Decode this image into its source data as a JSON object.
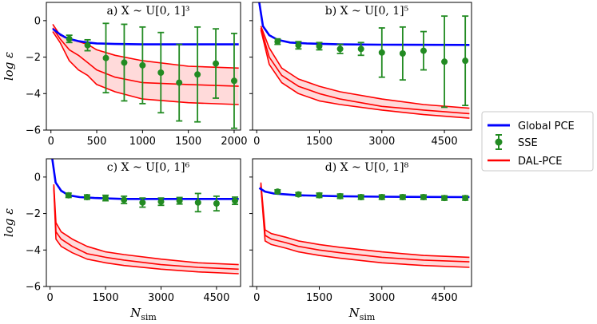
{
  "chart_data": [
    {
      "type": "line",
      "title": "a) X ~ U[0, 1]³",
      "xlabel": "",
      "ylabel": "log ε",
      "xlim": [
        -50,
        2070
      ],
      "ylim": [
        -6,
        1
      ],
      "xticks": [
        "0",
        "500",
        "1000",
        "1500",
        "2000"
      ],
      "yticks": [
        "0",
        "−2",
        "−4",
        "−6"
      ],
      "series": [
        {
          "name": "Global PCE",
          "x": [
            20,
            60,
            100,
            150,
            200,
            300,
            400,
            500,
            700,
            1000,
            1500,
            2050
          ],
          "y": [
            -0.45,
            -0.6,
            -0.75,
            -0.9,
            -1.0,
            -1.12,
            -1.2,
            -1.25,
            -1.28,
            -1.3,
            -1.3,
            -1.3
          ]
        },
        {
          "name": "SSE",
          "x": [
            200,
            400,
            600,
            800,
            1000,
            1200,
            1400,
            1600,
            1800,
            2000
          ],
          "y": [
            -1.0,
            -1.35,
            -2.05,
            -2.3,
            -2.45,
            -2.85,
            -3.4,
            -2.95,
            -2.35,
            -3.3
          ],
          "err": [
            0.2,
            0.3,
            1.9,
            2.1,
            2.1,
            2.2,
            2.1,
            2.6,
            1.9,
            2.6
          ]
        },
        {
          "name": "DAL-PCE",
          "x": [
            20,
            100,
            200,
            300,
            400,
            500,
            700,
            1000,
            1500,
            2050
          ],
          "y_upper": [
            -0.2,
            -0.8,
            -1.0,
            -1.15,
            -1.3,
            -1.6,
            -1.9,
            -2.2,
            -2.5,
            -2.6
          ],
          "y_mid": [
            -0.4,
            -1.0,
            -1.6,
            -1.9,
            -2.3,
            -2.7,
            -3.1,
            -3.4,
            -3.5,
            -3.6
          ],
          "y_lower": [
            -0.6,
            -1.2,
            -2.2,
            -2.7,
            -3.0,
            -3.5,
            -3.9,
            -4.3,
            -4.5,
            -4.6
          ]
        }
      ]
    },
    {
      "type": "line",
      "title": "b) X ~ U[0, 1]⁵",
      "xlabel": "",
      "ylabel": "",
      "xlim": [
        -100,
        5150
      ],
      "ylim": [
        -6,
        1
      ],
      "xticks": [
        "0",
        "1500",
        "3000",
        "4500"
      ],
      "yticks": [],
      "series": [
        {
          "name": "Global PCE",
          "x": [
            60,
            150,
            300,
            500,
            800,
            1200,
            2000,
            3000,
            5100
          ],
          "y": [
            1.0,
            -0.3,
            -0.8,
            -1.05,
            -1.2,
            -1.25,
            -1.3,
            -1.32,
            -1.33
          ]
        },
        {
          "name": "SSE",
          "x": [
            500,
            1000,
            1500,
            2000,
            2500,
            3000,
            3500,
            4000,
            4500,
            5000
          ],
          "y": [
            -1.15,
            -1.35,
            -1.4,
            -1.55,
            -1.55,
            -1.75,
            -1.8,
            -1.65,
            -2.25,
            -2.2
          ],
          "err": [
            0.15,
            0.2,
            0.2,
            0.25,
            0.35,
            1.35,
            1.45,
            1.05,
            2.5,
            2.45
          ]
        },
        {
          "name": "DAL-PCE",
          "x": [
            100,
            300,
            600,
            1000,
            1500,
            2000,
            3000,
            4000,
            5100
          ],
          "y_upper": [
            -0.3,
            -1.5,
            -2.6,
            -3.2,
            -3.6,
            -3.9,
            -4.3,
            -4.6,
            -4.8
          ],
          "y_mid": [
            -0.4,
            -2.0,
            -3.0,
            -3.6,
            -4.0,
            -4.3,
            -4.7,
            -4.9,
            -5.1
          ],
          "y_lower": [
            -0.5,
            -2.4,
            -3.4,
            -4.0,
            -4.4,
            -4.6,
            -4.9,
            -5.15,
            -5.35
          ]
        }
      ]
    },
    {
      "type": "line",
      "title": "c) X ~ U[0, 1]⁶",
      "xlabel": "N_sim",
      "ylabel": "log ε",
      "xlim": [
        -100,
        5150
      ],
      "ylim": [
        -6,
        1
      ],
      "xticks": [
        "0",
        "1500",
        "3000",
        "4500"
      ],
      "yticks": [
        "0",
        "−2",
        "−4",
        "−6"
      ],
      "series": [
        {
          "name": "Global PCE",
          "x": [
            60,
            150,
            300,
            500,
            800,
            1200,
            2000,
            3000,
            5100
          ],
          "y": [
            1.0,
            -0.3,
            -0.75,
            -1.0,
            -1.1,
            -1.15,
            -1.2,
            -1.2,
            -1.2
          ]
        },
        {
          "name": "SSE",
          "x": [
            500,
            1000,
            1500,
            2000,
            2500,
            3000,
            3500,
            4000,
            4500,
            5000
          ],
          "y": [
            -1.0,
            -1.1,
            -1.15,
            -1.25,
            -1.4,
            -1.35,
            -1.3,
            -1.4,
            -1.45,
            -1.3
          ],
          "err": [
            0.12,
            0.12,
            0.15,
            0.2,
            0.25,
            0.2,
            0.18,
            0.5,
            0.4,
            0.2
          ]
        },
        {
          "name": "DAL-PCE",
          "x": [
            100,
            160,
            300,
            600,
            1000,
            1500,
            2000,
            3000,
            4000,
            5100
          ],
          "y_upper": [
            -0.4,
            -2.5,
            -3.0,
            -3.4,
            -3.8,
            -4.1,
            -4.25,
            -4.5,
            -4.7,
            -4.8
          ],
          "y_mid": [
            -0.5,
            -3.0,
            -3.4,
            -3.8,
            -4.2,
            -4.4,
            -4.55,
            -4.8,
            -4.95,
            -5.05
          ],
          "y_lower": [
            -0.6,
            -3.4,
            -3.8,
            -4.15,
            -4.5,
            -4.7,
            -4.85,
            -5.05,
            -5.2,
            -5.3
          ]
        }
      ]
    },
    {
      "type": "line",
      "title": "d) X ~ U[0, 1]⁸",
      "xlabel": "N_sim",
      "ylabel": "",
      "xlim": [
        -100,
        5150
      ],
      "ylim": [
        -6,
        1
      ],
      "xticks": [
        "0",
        "1500",
        "3000",
        "4500"
      ],
      "yticks": [],
      "series": [
        {
          "name": "Global PCE",
          "x": [
            60,
            200,
            400,
            700,
            1000,
            2000,
            3000,
            5100
          ],
          "y": [
            -0.6,
            -0.8,
            -0.9,
            -0.95,
            -1.0,
            -1.05,
            -1.08,
            -1.1
          ]
        },
        {
          "name": "SSE",
          "x": [
            500,
            1000,
            1500,
            2000,
            2500,
            3000,
            3500,
            4000,
            4500,
            5000
          ],
          "y": [
            -0.8,
            -0.95,
            -1.0,
            -1.05,
            -1.1,
            -1.1,
            -1.1,
            -1.1,
            -1.15,
            -1.15
          ],
          "err": [
            0.1,
            0.1,
            0.12,
            0.12,
            0.12,
            0.12,
            0.12,
            0.12,
            0.12,
            0.12
          ]
        },
        {
          "name": "DAL-PCE",
          "x": [
            100,
            200,
            350,
            700,
            1000,
            1500,
            2000,
            3000,
            4000,
            5100
          ],
          "y_upper": [
            -0.3,
            -2.9,
            -3.1,
            -3.3,
            -3.5,
            -3.7,
            -3.85,
            -4.1,
            -4.3,
            -4.4
          ],
          "y_mid": [
            -0.4,
            -3.2,
            -3.4,
            -3.6,
            -3.8,
            -4.0,
            -4.15,
            -4.4,
            -4.55,
            -4.65
          ],
          "y_lower": [
            -0.5,
            -3.5,
            -3.7,
            -3.9,
            -4.1,
            -4.3,
            -4.45,
            -4.7,
            -4.85,
            -4.95
          ]
        }
      ]
    }
  ],
  "legend": {
    "items": [
      "Global PCE",
      "SSE",
      "DAL-PCE"
    ],
    "placement": "right"
  },
  "colors": {
    "global_pce": "#0000ff",
    "sse": "#228b22",
    "dal_pce": "#ff0000",
    "dal_band": "#ffdada"
  }
}
